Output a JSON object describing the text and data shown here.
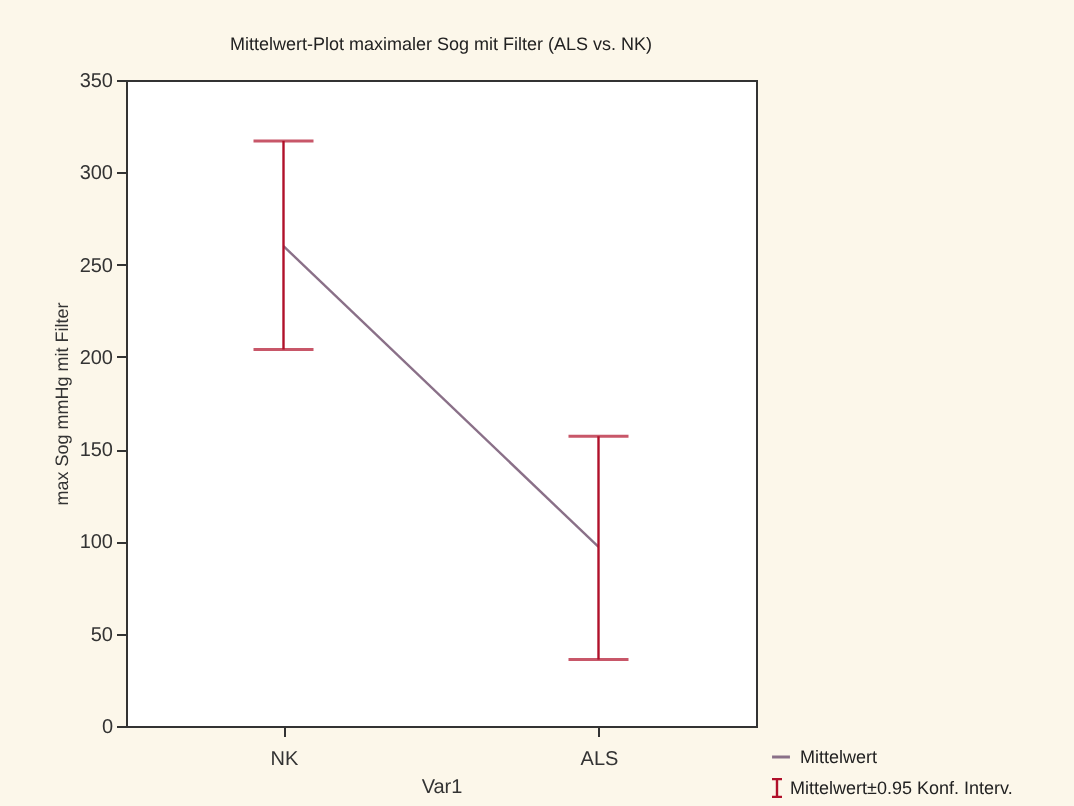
{
  "chart_data": {
    "type": "line",
    "title": "Mittelwert-Plot maximaler Sog mit Filter (ALS vs. NK)",
    "xlabel": "Var1",
    "ylabel": "max Sog mmHg mit Filter",
    "categories": [
      "NK",
      "ALS"
    ],
    "series": [
      {
        "name": "Mittelwert",
        "color": "#8a7088",
        "values": [
          260,
          97
        ],
        "errors": [
          [
            204,
            317
          ],
          [
            36,
            157
          ]
        ]
      }
    ],
    "ylim": [
      0,
      350
    ],
    "yticks": [
      0,
      50,
      100,
      150,
      200,
      250,
      300,
      350
    ],
    "grid": false,
    "legend": "bottom right",
    "marker": "none",
    "annotations": [
      "Mittelwert±0.95 Konf. Interv."
    ]
  }
}
